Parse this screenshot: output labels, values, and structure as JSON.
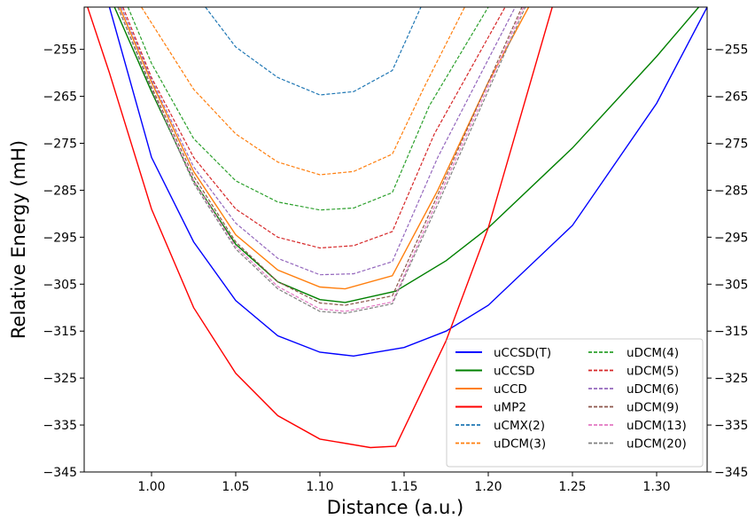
{
  "chart_data": {
    "type": "line",
    "xlabel": "Distance (a.u.)",
    "ylabel": "Relative Energy (mH)",
    "xlim": [
      0.96,
      1.33
    ],
    "ylim": [
      -345,
      -246
    ],
    "x_ticks": [
      1.0,
      1.05,
      1.1,
      1.15,
      1.2,
      1.25,
      1.3
    ],
    "x_tick_labels": [
      "1.00",
      "1.05",
      "1.10",
      "1.15",
      "1.20",
      "1.25",
      "1.30"
    ],
    "y_ticks": [
      -345,
      -335,
      -325,
      -315,
      -305,
      -295,
      -285,
      -275,
      -265,
      -255
    ],
    "y_tick_labels": [
      "−345",
      "−335",
      "−325",
      "−315",
      "−305",
      "−295",
      "−285",
      "−275",
      "−265",
      "−255"
    ],
    "y_ticks_mirrored_right": true,
    "grid": false,
    "legend": {
      "placement": "lower right",
      "columns": 2
    },
    "series": [
      {
        "name": "uCCSD(T)",
        "color": "#0000ff",
        "style": "solid",
        "x": [
          0.975,
          1.0,
          1.025,
          1.05,
          1.075,
          1.1,
          1.12,
          1.15,
          1.175,
          1.2,
          1.25,
          1.3,
          1.33
        ],
        "y": [
          -246,
          -278,
          -296,
          -308.5,
          -316,
          -319.5,
          -320.3,
          -318.5,
          -315,
          -309.5,
          -292.5,
          -266.5,
          -246
        ]
      },
      {
        "name": "uCCSD",
        "color": "#008000",
        "style": "solid",
        "x": [
          0.978,
          1.0,
          1.025,
          1.05,
          1.075,
          1.1,
          1.115,
          1.145,
          1.175,
          1.2,
          1.25,
          1.3,
          1.325
        ],
        "y": [
          -246,
          -264,
          -283,
          -296.5,
          -304.5,
          -308.3,
          -308.9,
          -306.5,
          -300,
          -293,
          -276,
          -256.5,
          -246
        ]
      },
      {
        "name": "uCCD",
        "color": "#ff7f0e",
        "style": "solid",
        "x": [
          0.981,
          1.0,
          1.025,
          1.05,
          1.075,
          1.1,
          1.115,
          1.143,
          1.17,
          1.2,
          1.224
        ],
        "y": [
          -246,
          -262,
          -281,
          -294.5,
          -302,
          -305.6,
          -306,
          -303.2,
          -285,
          -262,
          -246
        ]
      },
      {
        "name": "uMP2",
        "color": "#ff0000",
        "style": "solid",
        "x": [
          0.962,
          0.975,
          1.0,
          1.025,
          1.05,
          1.075,
          1.1,
          1.13,
          1.145,
          1.175,
          1.2,
          1.238
        ],
        "y": [
          -246,
          -260,
          -289,
          -310,
          -324,
          -333,
          -338,
          -339.8,
          -339.5,
          -317,
          -293,
          -246
        ]
      },
      {
        "name": "uCMX(2)",
        "color": "#1f77b4",
        "style": "dashed",
        "x": [
          1.032,
          1.05,
          1.075,
          1.1,
          1.12,
          1.143,
          1.16
        ],
        "y": [
          -246,
          -254.5,
          -261,
          -264.7,
          -264,
          -259.5,
          -246
        ]
      },
      {
        "name": "uDCM(3)",
        "color": "#ff7f0e",
        "style": "dashed",
        "x": [
          0.994,
          1.025,
          1.05,
          1.075,
          1.1,
          1.12,
          1.143,
          1.162,
          1.186
        ],
        "y": [
          -246,
          -263.5,
          -273,
          -279,
          -281.7,
          -281,
          -277.3,
          -263,
          -246
        ]
      },
      {
        "name": "uDCM(4)",
        "color": "#2ca02c",
        "style": "dashed",
        "x": [
          0.986,
          1.0,
          1.025,
          1.05,
          1.075,
          1.1,
          1.12,
          1.143,
          1.165,
          1.2
        ],
        "y": [
          -246,
          -258,
          -274,
          -283,
          -287.5,
          -289.2,
          -288.8,
          -285.5,
          -267,
          -246
        ]
      },
      {
        "name": "uDCM(5)",
        "color": "#d62728",
        "style": "dashed",
        "x": [
          0.983,
          1.0,
          1.025,
          1.05,
          1.075,
          1.1,
          1.12,
          1.143,
          1.168,
          1.21
        ],
        "y": [
          -246,
          -261,
          -278,
          -289,
          -295,
          -297.3,
          -296.8,
          -293.8,
          -273,
          -246
        ]
      },
      {
        "name": "uDCM(6)",
        "color": "#9467bd",
        "style": "dashed",
        "x": [
          0.982,
          1.0,
          1.025,
          1.05,
          1.075,
          1.1,
          1.12,
          1.143,
          1.17,
          1.216
        ],
        "y": [
          -246,
          -261.5,
          -280,
          -292,
          -299.5,
          -303,
          -302.8,
          -300.2,
          -278,
          -246
        ]
      },
      {
        "name": "uDCM(9)",
        "color": "#8c564b",
        "style": "dashed",
        "x": [
          0.98,
          1.0,
          1.025,
          1.05,
          1.075,
          1.1,
          1.115,
          1.143,
          1.17,
          1.22
        ],
        "y": [
          -246,
          -263,
          -282,
          -296,
          -304.5,
          -309,
          -309.5,
          -307.5,
          -286,
          -246
        ]
      },
      {
        "name": "uDCM(13)",
        "color": "#e377c2",
        "style": "dashed",
        "x": [
          0.98,
          1.0,
          1.025,
          1.05,
          1.075,
          1.1,
          1.115,
          1.143,
          1.17,
          1.221
        ],
        "y": [
          -246,
          -263.5,
          -283,
          -297,
          -305.5,
          -310.3,
          -310.8,
          -308.8,
          -287,
          -246
        ]
      },
      {
        "name": "uDCM(20)",
        "color": "#7f7f7f",
        "style": "dashed",
        "x": [
          0.98,
          1.0,
          1.025,
          1.05,
          1.075,
          1.1,
          1.115,
          1.143,
          1.17,
          1.222
        ],
        "y": [
          -246,
          -263.5,
          -283.5,
          -297.5,
          -306,
          -310.8,
          -311.2,
          -309.2,
          -288,
          -246
        ]
      }
    ]
  }
}
